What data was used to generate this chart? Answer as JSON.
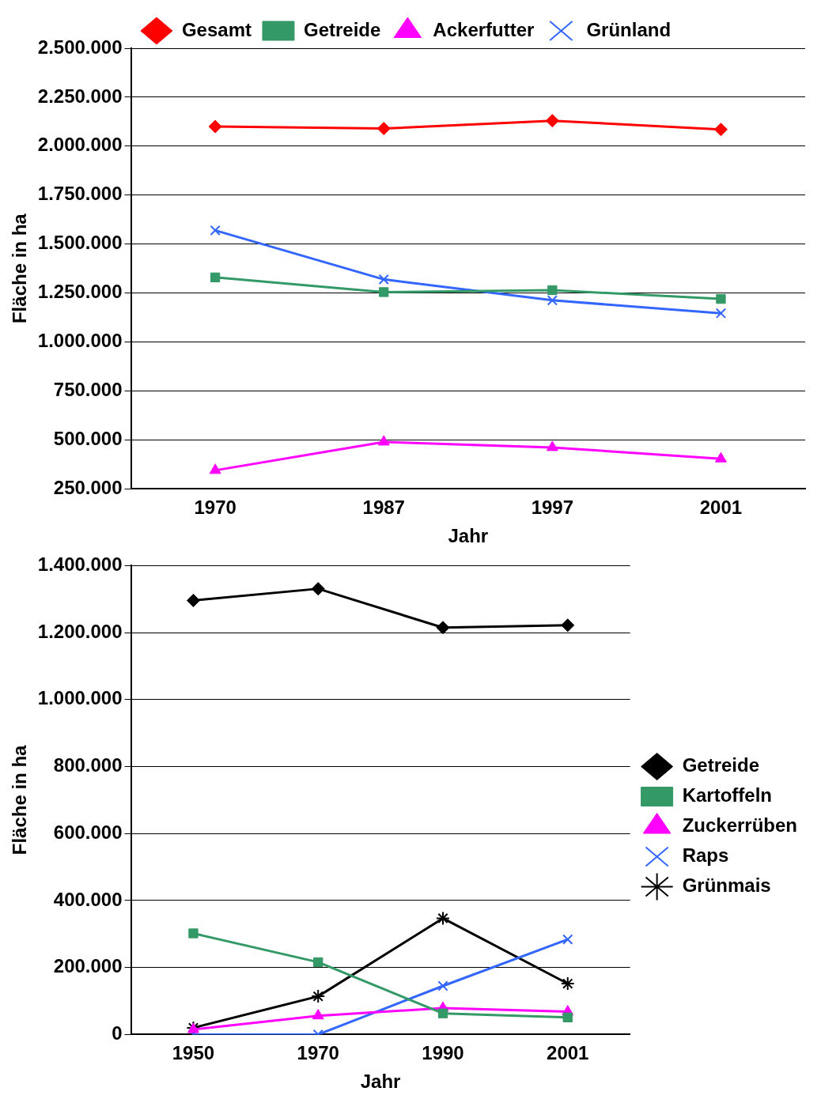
{
  "chart_data": [
    {
      "type": "line",
      "xlabel": "Jahr",
      "ylabel": "Fläche in ha",
      "categories": [
        "1970",
        "1987",
        "1997",
        "2001"
      ],
      "series": [
        {
          "name": "Gesamt",
          "color": "#ff0000",
          "marker": "diamond",
          "values": [
            2100000,
            2090000,
            2130000,
            2085000
          ]
        },
        {
          "name": "Getreide",
          "color": "#339966",
          "marker": "square",
          "values": [
            1330000,
            1255000,
            1265000,
            1220000
          ]
        },
        {
          "name": "Ackerfutter",
          "color": "#ff00ff",
          "marker": "triangle",
          "values": [
            345000,
            490000,
            462000,
            404000
          ]
        },
        {
          "name": "Grünland",
          "color": "#3366ff",
          "marker": "cross",
          "values": [
            1570000,
            1320000,
            1213000,
            1147000
          ]
        }
      ],
      "ylim": [
        250000,
        2500000
      ],
      "yticks": [
        {
          "value": 250000,
          "label": "250.000"
        },
        {
          "value": 500000,
          "label": "500.000"
        },
        {
          "value": 750000,
          "label": "750.000"
        },
        {
          "value": 1000000,
          "label": "1.000.000"
        },
        {
          "value": 1250000,
          "label": "1.250.000"
        },
        {
          "value": 1500000,
          "label": "1.500.000"
        },
        {
          "value": 1750000,
          "label": "1.750.000"
        },
        {
          "value": 2000000,
          "label": "2.000.000"
        },
        {
          "value": 2250000,
          "label": "2.250.000"
        },
        {
          "value": 2500000,
          "label": "2.500.000"
        }
      ],
      "grid": "y",
      "legend": "top"
    },
    {
      "type": "line",
      "xlabel": "Jahr",
      "ylabel": "Fläche in ha",
      "categories": [
        "1950",
        "1970",
        "1990",
        "2001"
      ],
      "series": [
        {
          "name": "Getreide",
          "color": "#000000",
          "marker": "diamond",
          "values": [
            1296000,
            1331000,
            1215000,
            1222000
          ]
        },
        {
          "name": "Kartoffeln",
          "color": "#339966",
          "marker": "square",
          "values": [
            302000,
            216000,
            63000,
            51000
          ]
        },
        {
          "name": "Zuckerrüben",
          "color": "#ff00ff",
          "marker": "triangle",
          "values": [
            15000,
            56000,
            79000,
            68000
          ]
        },
        {
          "name": "Raps",
          "color": "#3366ff",
          "marker": "cross",
          "values": [
            0,
            0,
            145000,
            284000
          ]
        },
        {
          "name": "Grünmais",
          "color": "#000000",
          "marker": "cross",
          "values": [
            20000,
            114000,
            347000,
            152000
          ]
        }
      ],
      "ylim": [
        0,
        1400000
      ],
      "yticks": [
        {
          "value": 0,
          "label": "0"
        },
        {
          "value": 200000,
          "label": "200.000"
        },
        {
          "value": 400000,
          "label": "400.000"
        },
        {
          "value": 600000,
          "label": "600.000"
        },
        {
          "value": 800000,
          "label": "800.000"
        },
        {
          "value": 1000000,
          "label": "1.000.000"
        },
        {
          "value": 1200000,
          "label": "1.200.000"
        },
        {
          "value": 1400000,
          "label": "1.400.000"
        }
      ],
      "grid": "y",
      "legend": "right"
    }
  ]
}
